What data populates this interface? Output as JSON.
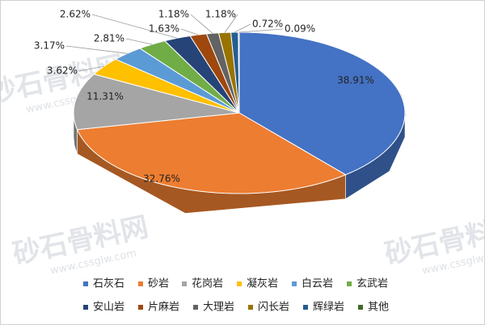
{
  "chart_data": {
    "type": "pie3d",
    "watermark": "砂石骨料网",
    "watermark_url": "www.cssglw.com",
    "categories": [
      "石灰石",
      "砂岩",
      "花岗岩",
      "凝灰岩",
      "白云岩",
      "玄武岩",
      "安山岩",
      "片麻岩",
      "大理岩",
      "闪长岩",
      "辉绿岩",
      "其他"
    ],
    "values": [
      38.91,
      32.76,
      11.31,
      3.62,
      3.17,
      2.81,
      2.62,
      1.63,
      1.18,
      1.18,
      0.72,
      0.09
    ],
    "value_labels": [
      "38.91%",
      "32.76%",
      "11.31%",
      "3.62%",
      "3.17%",
      "2.81%",
      "2.62%",
      "1.63%",
      "1.18%",
      "1.18%",
      "0.72%",
      "0.09%"
    ],
    "colors": [
      "#4472c4",
      "#ed7d31",
      "#a5a5a5",
      "#ffc000",
      "#5b9bd5",
      "#70ad47",
      "#264478",
      "#9e480e",
      "#636363",
      "#997300",
      "#255e91",
      "#43682b"
    ],
    "legend": "bottom"
  }
}
